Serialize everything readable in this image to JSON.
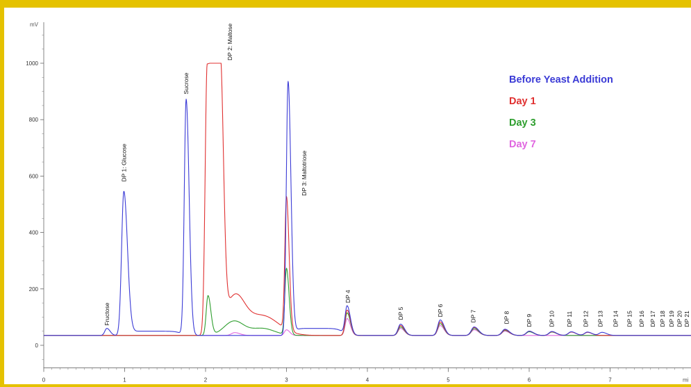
{
  "chart_data": {
    "type": "line",
    "y_unit": "mV",
    "x_unit": "mi",
    "xlim": [
      0,
      8
    ],
    "ylim": [
      -50,
      1150
    ],
    "x_ticks": [
      0,
      1,
      2,
      3,
      4,
      5,
      6,
      7
    ],
    "y_ticks": [
      0,
      200,
      400,
      600,
      800,
      1000
    ],
    "minor_x_step": 0.1,
    "minor_y_step": 50,
    "grid": false,
    "legend_position": "top-right",
    "baseline": 35,
    "series": [
      {
        "name": "Before Yeast Addition",
        "color": "#3b3bd6",
        "peaks": [
          {
            "x": 0.78,
            "h": 25,
            "w": 0.025
          },
          {
            "x": 0.99,
            "h": 510,
            "w": 0.028
          },
          {
            "x": 1.76,
            "h": 835,
            "w": 0.023
          },
          {
            "x": 3.02,
            "h": 900,
            "w": 0.022
          },
          {
            "x": 3.75,
            "h": 100,
            "w": 0.025
          },
          {
            "x": 4.41,
            "h": 40,
            "w": 0.03
          },
          {
            "x": 4.9,
            "h": 55,
            "w": 0.03
          },
          {
            "x": 5.32,
            "h": 30,
            "w": 0.035
          },
          {
            "x": 5.7,
            "h": 22,
            "w": 0.035
          },
          {
            "x": 6.0,
            "h": 15,
            "w": 0.035
          },
          {
            "x": 6.28,
            "h": 14,
            "w": 0.035
          },
          {
            "x": 6.52,
            "h": 13,
            "w": 0.035
          },
          {
            "x": 6.72,
            "h": 12,
            "w": 0.035
          },
          {
            "x": 6.9,
            "h": 11,
            "w": 0.035
          }
        ],
        "plateaus": [
          {
            "x0": 1.05,
            "x1": 1.7,
            "h": 15
          },
          {
            "x0": 3.1,
            "x1": 3.7,
            "h": 25
          }
        ]
      },
      {
        "name": "Day 1",
        "color": "#e03030",
        "peaks": [
          {
            "x": 3.0,
            "h": 470,
            "w": 0.02
          },
          {
            "x": 3.75,
            "h": 90,
            "w": 0.025
          },
          {
            "x": 4.41,
            "h": 35,
            "w": 0.03
          },
          {
            "x": 4.9,
            "h": 48,
            "w": 0.03
          },
          {
            "x": 5.32,
            "h": 28,
            "w": 0.035
          },
          {
            "x": 5.7,
            "h": 20,
            "w": 0.035
          },
          {
            "x": 6.0,
            "h": 15,
            "w": 0.035
          },
          {
            "x": 6.28,
            "h": 13,
            "w": 0.035
          },
          {
            "x": 6.52,
            "h": 12,
            "w": 0.035
          },
          {
            "x": 6.72,
            "h": 11,
            "w": 0.035
          }
        ],
        "plateaus": [],
        "shoulders": [
          {
            "x0": 1.95,
            "x1": 2.02,
            "x2": 2.18,
            "x3": 2.25,
            "h": 960
          }
        ],
        "humps": [
          {
            "x": 2.36,
            "h": 130,
            "w": 0.12
          },
          {
            "x": 2.7,
            "h": 70,
            "w": 0.2
          }
        ]
      },
      {
        "name": "Day 3",
        "color": "#2e9e2e",
        "peaks": [
          {
            "x": 2.03,
            "h": 140,
            "w": 0.022
          },
          {
            "x": 3.0,
            "h": 235,
            "w": 0.02
          },
          {
            "x": 3.75,
            "h": 80,
            "w": 0.025
          },
          {
            "x": 4.41,
            "h": 30,
            "w": 0.03
          },
          {
            "x": 4.9,
            "h": 42,
            "w": 0.03
          },
          {
            "x": 5.32,
            "h": 24,
            "w": 0.035
          },
          {
            "x": 5.7,
            "h": 18,
            "w": 0.035
          },
          {
            "x": 6.0,
            "h": 13,
            "w": 0.035
          },
          {
            "x": 6.28,
            "h": 12,
            "w": 0.035
          }
        ],
        "plateaus": [],
        "humps": [
          {
            "x": 2.35,
            "h": 50,
            "w": 0.12
          },
          {
            "x": 2.7,
            "h": 25,
            "w": 0.15
          }
        ]
      },
      {
        "name": "Day 7",
        "color": "#e066e0",
        "peaks": [
          {
            "x": 2.36,
            "h": 10,
            "w": 0.04
          },
          {
            "x": 3.0,
            "h": 20,
            "w": 0.025
          },
          {
            "x": 3.75,
            "h": 60,
            "w": 0.025
          },
          {
            "x": 4.41,
            "h": 25,
            "w": 0.03
          },
          {
            "x": 4.9,
            "h": 35,
            "w": 0.03
          },
          {
            "x": 5.32,
            "h": 20,
            "w": 0.035
          },
          {
            "x": 5.7,
            "h": 15,
            "w": 0.035
          }
        ],
        "plateaus": []
      }
    ],
    "annotations": [
      {
        "text": "Fructose",
        "x": 0.78,
        "y": 70
      },
      {
        "text": "DP 1: Glucose",
        "x": 0.99,
        "y": 580
      },
      {
        "text": "Sucrose",
        "x": 1.76,
        "y": 890
      },
      {
        "text": "DP 2: Maltose",
        "x": 2.3,
        "y": 1010
      },
      {
        "text": "DP 3: Maltotriose",
        "x": 3.22,
        "y": 530
      },
      {
        "text": "DP 4",
        "x": 3.76,
        "y": 150
      },
      {
        "text": "DP 5",
        "x": 4.41,
        "y": 90
      },
      {
        "text": "DP 6",
        "x": 4.9,
        "y": 100
      },
      {
        "text": "DP 7",
        "x": 5.31,
        "y": 80
      },
      {
        "text": "DP 8",
        "x": 5.72,
        "y": 75
      },
      {
        "text": "DP 9",
        "x": 6.0,
        "y": 65
      },
      {
        "text": "DP 10",
        "x": 6.28,
        "y": 65
      },
      {
        "text": "DP 11",
        "x": 6.5,
        "y": 65
      },
      {
        "text": "DP 12",
        "x": 6.7,
        "y": 65
      },
      {
        "text": "DP 13",
        "x": 6.88,
        "y": 65
      },
      {
        "text": "DP 14",
        "x": 7.07,
        "y": 65
      },
      {
        "text": "DP 15",
        "x": 7.24,
        "y": 65
      },
      {
        "text": "DP 16",
        "x": 7.39,
        "y": 65
      },
      {
        "text": "DP 17",
        "x": 7.53,
        "y": 65
      },
      {
        "text": "DP 18",
        "x": 7.65,
        "y": 65
      },
      {
        "text": "DP 19",
        "x": 7.76,
        "y": 65
      },
      {
        "text": "DP 20",
        "x": 7.86,
        "y": 65
      },
      {
        "text": "DP 21",
        "x": 7.95,
        "y": 65
      }
    ]
  }
}
